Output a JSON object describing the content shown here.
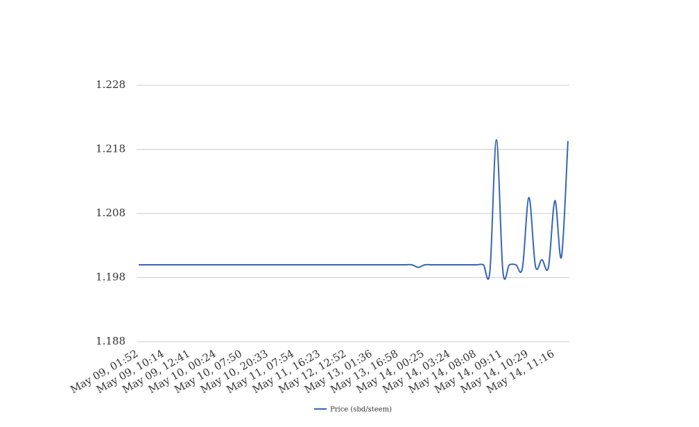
{
  "chart_data": {
    "type": "line",
    "categories": [
      "May 09, 01:52",
      null,
      null,
      null,
      "May 09, 10:14",
      null,
      null,
      null,
      "May 09, 12:41",
      null,
      null,
      null,
      "May 10, 00:24",
      null,
      null,
      null,
      "May 10, 07:50",
      null,
      null,
      null,
      "May 10, 20:33",
      null,
      null,
      null,
      "May 11, 07:54",
      null,
      null,
      null,
      "May 11, 16:23",
      null,
      null,
      null,
      "May 12, 12:52",
      null,
      null,
      null,
      "May 13, 01:36",
      null,
      null,
      null,
      "May 13, 16:58",
      null,
      null,
      null,
      "May 14, 00:25",
      null,
      null,
      null,
      "May 14, 03:24",
      null,
      null,
      null,
      "May 14, 08:08",
      null,
      null,
      null,
      "May 14, 09:11",
      null,
      null,
      null,
      "May 14, 10:29",
      null,
      null,
      null,
      "May 14, 11:16",
      null,
      null
    ],
    "series": [
      {
        "name": "Price (sbd/steem)",
        "color": "#3565b5",
        "values": [
          1.2,
          1.2,
          1.2,
          1.2,
          1.2,
          1.2,
          1.2,
          1.2,
          1.2,
          1.2,
          1.2,
          1.2,
          1.2,
          1.2,
          1.2,
          1.2,
          1.2,
          1.2,
          1.2,
          1.2,
          1.2,
          1.2,
          1.2,
          1.2,
          1.2,
          1.2,
          1.2,
          1.2,
          1.2,
          1.2,
          1.2,
          1.2,
          1.2,
          1.2,
          1.2,
          1.2,
          1.2,
          1.2,
          1.2,
          1.2,
          1.2,
          1.2,
          1.2,
          1.1996,
          1.2,
          1.2,
          1.2,
          1.2,
          1.2,
          1.2,
          1.2,
          1.2,
          1.2,
          1.2,
          1.199,
          1.2195,
          1.199,
          1.2,
          1.2,
          1.1995,
          1.2105,
          1.1998,
          1.2008,
          1.1996,
          1.21,
          1.2012,
          1.2193
        ]
      }
    ],
    "ylim": [
      1.188,
      1.228
    ],
    "yticks": [
      1.188,
      1.198,
      1.208,
      1.218,
      1.228
    ],
    "grid": true,
    "legend": "bottom"
  }
}
